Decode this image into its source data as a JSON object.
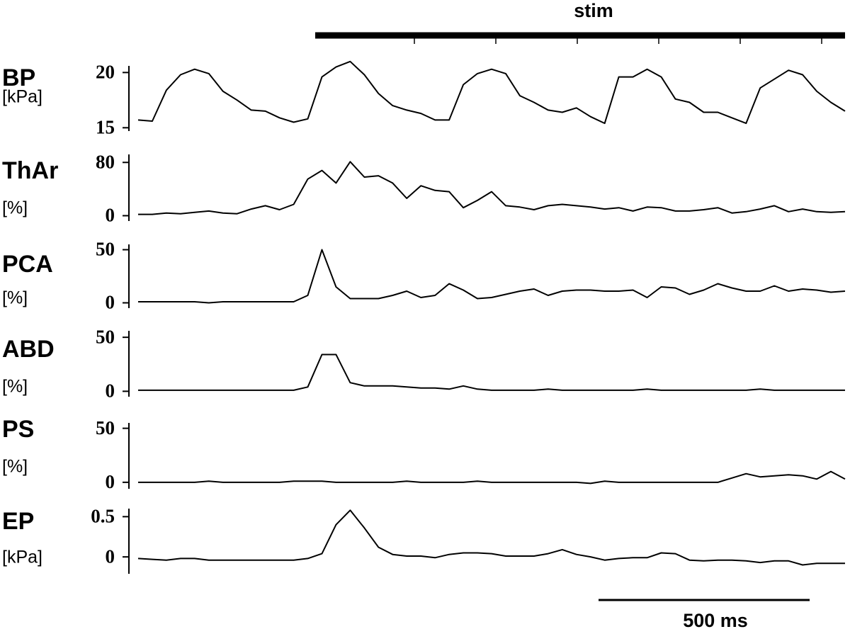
{
  "stim_label": "stim",
  "scale_bar_label": "500 ms",
  "chart_data": [
    {
      "type": "line",
      "title": "BP",
      "ylabel": "[kPa]",
      "color": "#000000",
      "ylim": [
        14.7,
        20.6
      ],
      "yticks": [
        15,
        20
      ],
      "values": [
        15.7,
        15.6,
        18.4,
        19.8,
        20.3,
        19.9,
        18.3,
        17.5,
        16.6,
        16.5,
        15.9,
        15.5,
        15.8,
        19.6,
        20.5,
        21.0,
        19.8,
        18.1,
        17.0,
        16.6,
        16.3,
        15.7,
        15.7,
        18.9,
        19.9,
        20.3,
        19.9,
        17.9,
        17.3,
        16.6,
        16.4,
        16.8,
        16.0,
        15.4,
        19.6,
        19.6,
        20.3,
        19.6,
        17.6,
        17.3,
        16.4,
        16.4,
        15.9,
        15.4,
        18.6,
        19.4,
        20.2,
        19.8,
        18.3,
        17.3,
        16.5
      ]
    },
    {
      "type": "line",
      "title": "ThAr",
      "ylabel": "[%]",
      "color": "#000000",
      "ylim": [
        -8,
        92
      ],
      "yticks": [
        0,
        80
      ],
      "values": [
        2,
        2,
        4,
        3,
        5,
        7,
        4,
        3,
        10,
        15,
        9,
        17,
        55,
        68,
        49,
        81,
        58,
        60,
        49,
        26,
        45,
        38,
        36,
        12,
        23,
        36,
        15,
        13,
        9,
        15,
        17,
        15,
        13,
        10,
        12,
        7,
        13,
        12,
        7,
        7,
        9,
        12,
        4,
        6,
        10,
        15,
        6,
        10,
        6,
        5,
        6
      ]
    },
    {
      "type": "line",
      "title": "PCA",
      "ylabel": "[%]",
      "color": "#000000",
      "ylim": [
        -5,
        55
      ],
      "yticks": [
        0,
        50
      ],
      "values": [
        1,
        1,
        1,
        1,
        1,
        0,
        1,
        1,
        1,
        1,
        1,
        1,
        7,
        50,
        15,
        4,
        4,
        4,
        7,
        11,
        5,
        7,
        18,
        12,
        4,
        5,
        8,
        11,
        13,
        7,
        11,
        12,
        12,
        11,
        11,
        12,
        5,
        15,
        14,
        8,
        12,
        18,
        14,
        11,
        11,
        16,
        11,
        13,
        12,
        10,
        11
      ]
    },
    {
      "type": "line",
      "title": "ABD",
      "ylabel": "[%]",
      "color": "#000000",
      "ylim": [
        -5,
        56
      ],
      "yticks": [
        0,
        50
      ],
      "values": [
        1,
        1,
        1,
        1,
        1,
        1,
        1,
        1,
        1,
        1,
        1,
        1,
        4,
        34,
        34,
        8,
        5,
        5,
        5,
        4,
        3,
        3,
        2,
        5,
        2,
        1,
        1,
        1,
        1,
        2,
        1,
        1,
        1,
        1,
        1,
        1,
        2,
        1,
        1,
        1,
        1,
        1,
        1,
        1,
        2,
        1,
        1,
        1,
        1,
        1,
        1
      ]
    },
    {
      "type": "line",
      "title": "PS",
      "ylabel": "[%]",
      "color": "#000000",
      "ylim": [
        -6,
        55
      ],
      "yticks": [
        0,
        50
      ],
      "values": [
        0,
        0,
        0,
        0,
        0,
        1,
        0,
        0,
        0,
        0,
        0,
        1,
        1,
        1,
        0,
        0,
        0,
        0,
        0,
        1,
        0,
        0,
        0,
        0,
        1,
        0,
        0,
        0,
        0,
        0,
        0,
        0,
        -1,
        1,
        0,
        0,
        0,
        0,
        0,
        0,
        0,
        0,
        4,
        8,
        5,
        6,
        7,
        6,
        3,
        10,
        3
      ]
    },
    {
      "type": "line",
      "title": "EP",
      "ylabel": "[kPa]",
      "color": "#000000",
      "ylim": [
        -0.21,
        0.6
      ],
      "yticks": [
        0,
        0.5
      ],
      "values": [
        -0.02,
        -0.03,
        -0.04,
        -0.02,
        -0.02,
        -0.04,
        -0.04,
        -0.04,
        -0.04,
        -0.04,
        -0.04,
        -0.04,
        -0.02,
        0.04,
        0.4,
        0.58,
        0.36,
        0.12,
        0.03,
        0.01,
        0.01,
        -0.01,
        0.03,
        0.05,
        0.05,
        0.04,
        0.01,
        0.01,
        0.01,
        0.04,
        0.09,
        0.03,
        0,
        -0.04,
        -0.02,
        -0.01,
        -0.01,
        0.05,
        0.04,
        -0.04,
        -0.05,
        -0.04,
        -0.04,
        -0.05,
        -0.07,
        -0.05,
        -0.05,
        -0.1,
        -0.08,
        -0.08,
        -0.08
      ]
    }
  ]
}
